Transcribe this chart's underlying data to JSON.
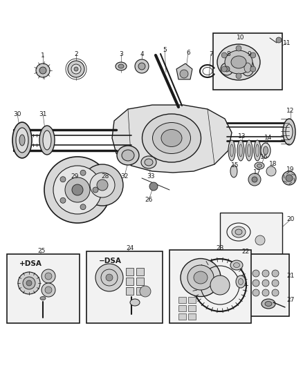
{
  "bg_color": "#ffffff",
  "line_color": "#1a1a1a",
  "fig_width": 4.39,
  "fig_height": 5.33,
  "dpi": 100,
  "axle_color": "#c8c8c8",
  "part_color": "#d0d0d0",
  "dark_part": "#888888",
  "label_fontsize": 6.5,
  "leader_color": "#555555"
}
